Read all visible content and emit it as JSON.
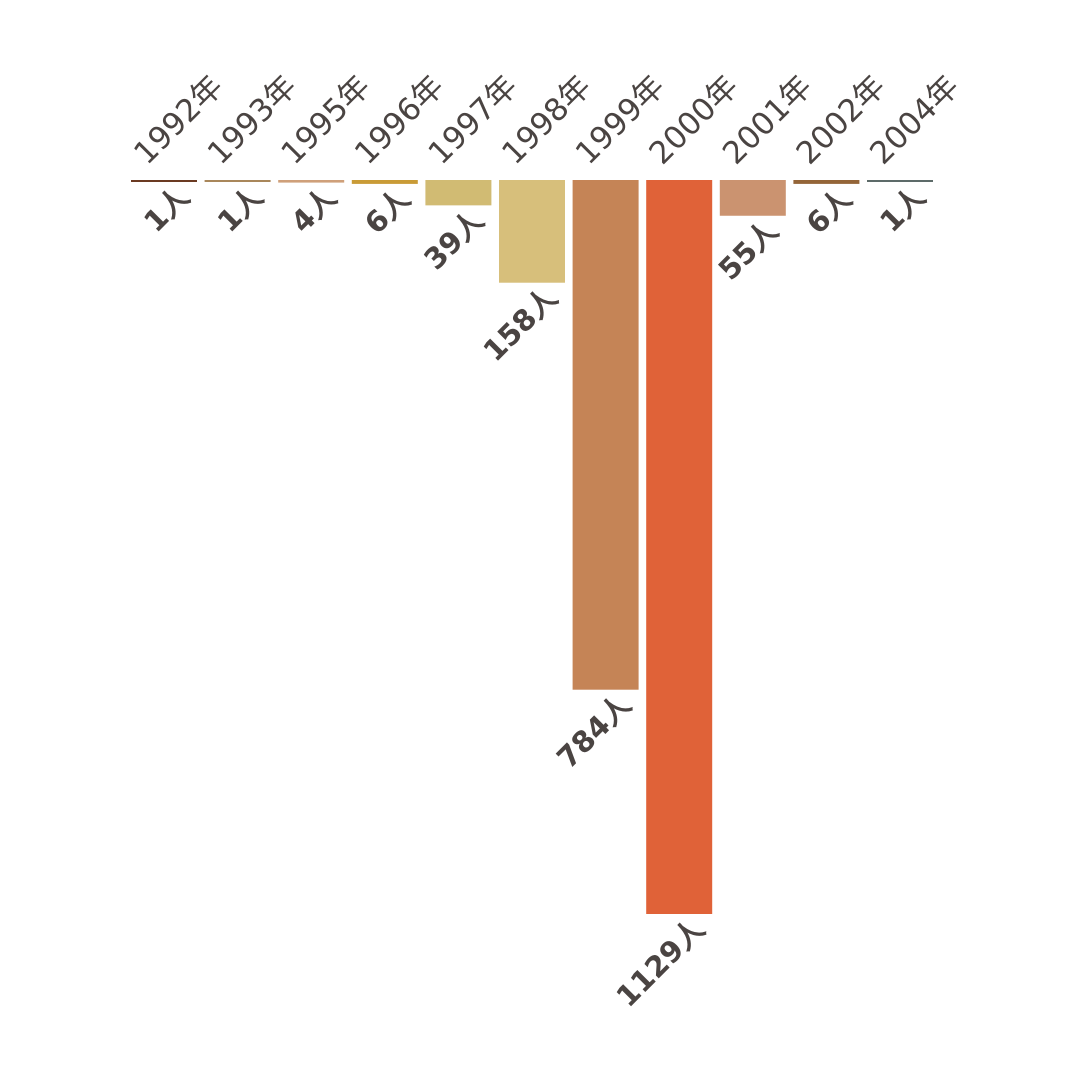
{
  "chart_data": {
    "type": "bar",
    "orientation": "downward",
    "categories": [
      "1992年",
      "1993年",
      "1995年",
      "1996年",
      "1997年",
      "1998年",
      "1999年",
      "2000年",
      "2001年",
      "2002年",
      "2004年"
    ],
    "values": [
      1,
      1,
      4,
      6,
      39,
      158,
      784,
      1129,
      55,
      6,
      1
    ],
    "value_labels": [
      "1人",
      "1人",
      "4人",
      "6人",
      "39人",
      "158人",
      "784人",
      "1129人",
      "55人",
      "6人",
      "1人"
    ],
    "colors": [
      "#6b3a22",
      "#a9875b",
      "#cfa07a",
      "#c99b36",
      "#d1bb73",
      "#d7bf7b",
      "#c58456",
      "#e06238",
      "#cb9370",
      "#946538",
      "#5d6b69"
    ],
    "title": "",
    "xlabel": "",
    "ylabel": "",
    "grid": false,
    "legend": "none"
  }
}
